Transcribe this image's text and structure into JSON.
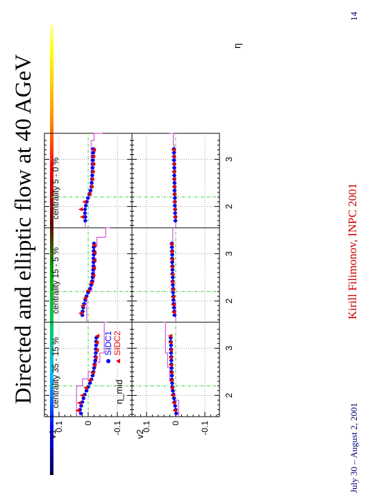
{
  "slide": {
    "title": "Directed and elliptic flow at 40 AGeV",
    "date": "July 30 – August 2, 2001",
    "author": "Kirill Filimonov, INPC 2001",
    "page_number": "14"
  },
  "chart_data": {
    "type": "scatter",
    "rotated": "page displayed rotated 90° counter-clockwise",
    "xlabel": "η",
    "xlim": [
      1.55,
      3.55
    ],
    "x_ticks": [
      "2",
      "3"
    ],
    "ylim": [
      -0.15,
      0.15
    ],
    "y_ticks": [
      "0.1",
      "0",
      "-0.1"
    ],
    "row_labels": [
      "v1",
      "v2"
    ],
    "column_labels": [
      "centrality 35 - 15 %",
      "centrality 15 - 5 %",
      "centrality 5 - 0 %"
    ],
    "legend": {
      "series": [
        "SIDC1",
        "SIDC2"
      ],
      "annotation": "η_mid"
    },
    "eta_mid": 2.2,
    "series_colors": {
      "SIDC1": "#0000ee",
      "SIDC2": "#ee0000",
      "histogram": "#cc33cc",
      "guides": "#33cc33"
    },
    "panels": [
      {
        "row": "v1",
        "column": 0,
        "series": [
          {
            "name": "SIDC1",
            "x": [
              1.62,
              1.7,
              1.78,
              1.86,
              1.94,
              2.02,
              2.1,
              2.18,
              2.26,
              2.34,
              2.42,
              2.5,
              2.58,
              2.66,
              2.74,
              2.82,
              2.9,
              2.98,
              3.06,
              3.14,
              3.22
            ],
            "y": [
              0.025,
              0.028,
              0.024,
              0.02,
              0.016,
              0.012,
              0.006,
              0.0,
              -0.006,
              -0.011,
              -0.015,
              -0.018,
              -0.02,
              -0.022,
              -0.024,
              -0.025,
              -0.026,
              -0.026,
              -0.027,
              -0.027,
              -0.028
            ]
          },
          {
            "name": "SIDC2",
            "x": [
              1.68,
              1.84,
              2.0,
              2.16,
              2.32,
              2.48,
              2.64,
              2.8,
              2.96,
              3.12,
              3.26
            ],
            "y": [
              0.035,
              0.03,
              0.02,
              0.008,
              -0.006,
              -0.016,
              -0.022,
              -0.026,
              -0.03,
              -0.03,
              -0.032
            ]
          }
        ]
      },
      {
        "row": "v1",
        "column": 1,
        "series": [
          {
            "name": "SIDC1",
            "x": [
              1.7,
              1.78,
              1.86,
              1.94,
              2.02,
              2.1,
              2.18,
              2.26,
              2.34,
              2.42,
              2.5,
              2.58,
              2.66,
              2.74,
              2.82,
              2.9,
              2.98,
              3.06,
              3.14,
              3.22
            ],
            "y": [
              0.02,
              0.019,
              0.017,
              0.014,
              0.01,
              0.006,
              0.0,
              -0.006,
              -0.01,
              -0.013,
              -0.015,
              -0.016,
              -0.017,
              -0.018,
              -0.018,
              -0.018,
              -0.019,
              -0.019,
              -0.019,
              -0.02
            ]
          },
          {
            "name": "SIDC2",
            "x": [
              1.74,
              1.9,
              2.06,
              2.22,
              2.38,
              2.54,
              2.7,
              2.86,
              3.02,
              3.18
            ],
            "y": [
              0.025,
              0.018,
              0.01,
              0.0,
              -0.012,
              -0.018,
              -0.02,
              -0.022,
              -0.022,
              -0.021
            ]
          }
        ]
      },
      {
        "row": "v1",
        "column": 2,
        "series": [
          {
            "name": "SIDC1",
            "x": [
              1.7,
              1.78,
              1.86,
              1.94,
              2.02,
              2.1,
              2.18,
              2.26,
              2.34,
              2.42,
              2.5,
              2.58,
              2.66,
              2.74,
              2.82,
              2.9,
              2.98,
              3.06,
              3.14,
              3.22
            ],
            "y": [
              0.01,
              0.01,
              0.011,
              0.011,
              0.008,
              0.005,
              0.001,
              -0.004,
              -0.008,
              -0.011,
              -0.012,
              -0.013,
              -0.014,
              -0.015,
              -0.015,
              -0.016,
              -0.016,
              -0.016,
              -0.017,
              -0.017
            ]
          },
          {
            "name": "SIDC2",
            "x": [
              1.78,
              1.94,
              2.1,
              2.26,
              2.42,
              2.58,
              2.74,
              2.9,
              3.06,
              3.2
            ],
            "y": [
              0.02,
              0.025,
              0.012,
              -0.005,
              -0.012,
              -0.014,
              -0.016,
              -0.018,
              -0.018,
              -0.02
            ]
          }
        ]
      },
      {
        "row": "v2",
        "column": 0,
        "series": [
          {
            "name": "SIDC1",
            "x": [
              1.62,
              1.7,
              1.78,
              1.86,
              1.94,
              2.02,
              2.1,
              2.18,
              2.26,
              2.34,
              2.42,
              2.5,
              2.58,
              2.66,
              2.74,
              2.82,
              2.9,
              2.98,
              3.06,
              3.14,
              3.22
            ],
            "y": [
              -0.002,
              0.0,
              0.002,
              0.004,
              0.006,
              0.008,
              0.01,
              0.011,
              0.012,
              0.013,
              0.013,
              0.014,
              0.014,
              0.015,
              0.015,
              0.015,
              0.016,
              0.016,
              0.016,
              0.017,
              0.017
            ]
          },
          {
            "name": "SIDC2",
            "x": [
              1.68,
              1.84,
              2.0,
              2.16,
              2.32,
              2.48,
              2.64,
              2.8,
              2.96,
              3.12,
              3.26
            ],
            "y": [
              0.002,
              0.006,
              0.01,
              0.012,
              0.014,
              0.014,
              0.015,
              0.016,
              0.016,
              0.017,
              0.018
            ]
          }
        ]
      },
      {
        "row": "v2",
        "column": 1,
        "series": [
          {
            "name": "SIDC1",
            "x": [
              1.7,
              1.78,
              1.86,
              1.94,
              2.02,
              2.1,
              2.18,
              2.26,
              2.34,
              2.42,
              2.5,
              2.58,
              2.66,
              2.74,
              2.82,
              2.9,
              2.98,
              3.06,
              3.14,
              3.22
            ],
            "y": [
              0.004,
              0.005,
              0.006,
              0.007,
              0.008,
              0.008,
              0.009,
              0.009,
              0.01,
              0.01,
              0.01,
              0.011,
              0.011,
              0.011,
              0.012,
              0.012,
              0.012,
              0.012,
              0.013,
              0.013
            ]
          },
          {
            "name": "SIDC2",
            "x": [
              1.76,
              1.92,
              2.08,
              2.24,
              2.4,
              2.56,
              2.72,
              2.88,
              3.04,
              3.2
            ],
            "y": [
              0.006,
              0.008,
              0.009,
              0.01,
              0.011,
              0.011,
              0.012,
              0.012,
              0.013,
              0.014
            ]
          }
        ]
      },
      {
        "row": "v2",
        "column": 2,
        "series": [
          {
            "name": "SIDC1",
            "x": [
              1.7,
              1.78,
              1.86,
              1.94,
              2.02,
              2.1,
              2.18,
              2.26,
              2.34,
              2.42,
              2.5,
              2.58,
              2.66,
              2.74,
              2.82,
              2.9,
              2.98,
              3.06,
              3.14,
              3.22
            ],
            "y": [
              0.001,
              0.001,
              0.002,
              0.002,
              0.003,
              0.003,
              0.003,
              0.004,
              0.004,
              0.004,
              0.004,
              0.005,
              0.005,
              0.005,
              0.005,
              0.005,
              0.006,
              0.006,
              0.006,
              0.006
            ]
          },
          {
            "name": "SIDC2",
            "x": [
              1.78,
              1.94,
              2.1,
              2.26,
              2.42,
              2.58,
              2.74,
              2.9,
              3.06,
              3.2
            ],
            "y": [
              0.002,
              0.003,
              0.004,
              0.004,
              0.005,
              0.005,
              0.006,
              0.006,
              0.006,
              0.007
            ]
          }
        ]
      }
    ],
    "histograms": [
      {
        "row": "v1",
        "column": 0,
        "x": [
          1.55,
          2.2,
          2.35,
          2.5,
          2.7,
          2.9,
          3.55
        ],
        "y": [
          0.04,
          0.02,
          0.0,
          -0.02,
          -0.04,
          -0.055,
          -0.065
        ]
      },
      {
        "row": "v1",
        "column": 1,
        "x": [
          1.55,
          2.2,
          2.4,
          2.6,
          3.15,
          3.35,
          3.55
        ],
        "y": [
          0.005,
          -0.012,
          -0.02,
          -0.022,
          -0.03,
          -0.06,
          -0.075
        ]
      },
      {
        "row": "v1",
        "column": 2,
        "x": [
          1.55,
          2.1,
          2.3,
          3.4,
          3.55
        ],
        "y": [
          0.01,
          0.0,
          -0.01,
          -0.02,
          -0.05
        ]
      },
      {
        "row": "v2",
        "column": 0,
        "x": [
          1.55,
          1.9,
          2.1,
          2.3,
          2.6,
          2.9,
          3.55
        ],
        "y": [
          -0.01,
          0.005,
          0.015,
          0.02,
          0.028,
          0.035,
          0.04
        ]
      },
      {
        "row": "v2",
        "column": 1,
        "x": [
          1.55,
          2.0,
          2.4,
          3.55
        ],
        "y": [
          0.0,
          0.006,
          0.01,
          0.012
        ]
      },
      {
        "row": "v2",
        "column": 2,
        "x": [
          1.55,
          2.0,
          2.5,
          3.3,
          3.55
        ],
        "y": [
          0.0,
          0.003,
          0.005,
          0.008,
          0.02
        ]
      }
    ]
  }
}
